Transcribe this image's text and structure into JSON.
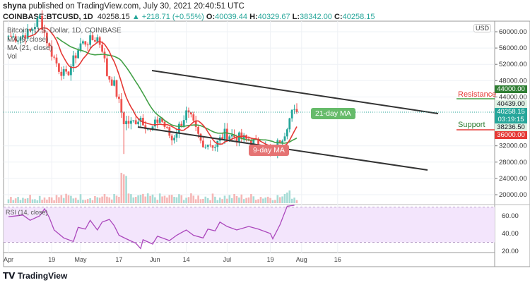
{
  "header": {
    "publisher": "shyna",
    "published_text": "published on TradingView.com, July 30, 2021 20:40:51 UTC",
    "symbol": "COINBASE:BTCUSD, 1D",
    "last": "40258.15",
    "change": "+218.71 (+0.55%)",
    "o_label": "O:",
    "open": "40039.44",
    "h_label": "H:",
    "high": "40329.67",
    "l_label": "L:",
    "low": "38342.00",
    "c_label": "C:",
    "close": "40258.15"
  },
  "legend": {
    "title": "Bitcoin / U.S. Dollar, 1D, COINBASE",
    "ma9": "MA (9, close)",
    "ma21": "MA (21, close)",
    "vol": "Vol",
    "rsi": "RSI (14, close)"
  },
  "annotations": {
    "resistance": "Resistance",
    "support": "Support",
    "ma21_label": "21-day MA",
    "ma9_label": "9-day MA"
  },
  "price_tags": {
    "resistance": "44000.00",
    "high_line": "40439.00",
    "last": "40258.15",
    "countdown": "03:19:15",
    "low_line": "38236.50",
    "support": "36000.00"
  },
  "currency": "USD",
  "brand": "TradingView",
  "colors": {
    "up": "#26a69a",
    "down": "#ef5350",
    "ma9": "#e53935",
    "ma21": "#43a047",
    "rsi": "#ab47bc",
    "rsi_band": "#f3e5fc"
  },
  "chart_data": [
    {
      "type": "candlestick",
      "title": "Bitcoin / U.S. Dollar, 1D, COINBASE",
      "y_ticks": [
        "60000.00",
        "56000.00",
        "52000.00",
        "48000.00",
        "44000.00",
        "32000.00",
        "28000.00",
        "24000.00",
        "20000.00"
      ],
      "ylim": [
        20000,
        62600
      ],
      "x_ticks": [
        "Apr",
        "19",
        "May",
        "17",
        "Jun",
        "14",
        "Jul",
        "19",
        "Aug",
        "16"
      ],
      "close_series": {
        "dates": [
          "2021-04-01",
          "2021-04-05",
          "2021-04-10",
          "2021-04-14",
          "2021-04-18",
          "2021-04-22",
          "2021-04-25",
          "2021-05-01",
          "2021-05-08",
          "2021-05-10",
          "2021-05-12",
          "2021-05-15",
          "2021-05-19",
          "2021-05-22",
          "2021-05-26",
          "2021-05-30",
          "2021-06-03",
          "2021-06-08",
          "2021-06-14",
          "2021-06-16",
          "2021-06-21",
          "2021-06-22",
          "2021-06-26",
          "2021-06-30",
          "2021-07-06",
          "2021-07-12",
          "2021-07-16",
          "2021-07-20",
          "2021-07-22",
          "2021-07-25",
          "2021-07-26",
          "2021-07-28",
          "2021-07-30"
        ],
        "values": [
          59000,
          58500,
          60000,
          63500,
          56000,
          51000,
          49000,
          57000,
          58500,
          56000,
          49500,
          47000,
          38000,
          37500,
          39000,
          35500,
          39000,
          33500,
          40000,
          38500,
          31500,
          33000,
          32000,
          35000,
          34000,
          33000,
          31800,
          29800,
          32500,
          35400,
          37300,
          40000,
          40258
        ]
      },
      "indicators": [
        "MA (9, close)",
        "MA (21, close)",
        "Vol"
      ]
    },
    {
      "type": "line",
      "title": "RSI (14, close)",
      "y_ticks": [
        "60.00",
        "40.00",
        "20.00"
      ],
      "bands": [
        30,
        70
      ],
      "dates": [
        "2021-04-01",
        "2021-04-07",
        "2021-04-10",
        "2021-04-14",
        "2021-04-16",
        "2021-04-18",
        "2021-04-20",
        "2021-04-24",
        "2021-04-28",
        "2021-04-30",
        "2021-05-03",
        "2021-05-05",
        "2021-05-08",
        "2021-05-10",
        "2021-05-13",
        "2021-05-15",
        "2021-05-17",
        "2021-05-20",
        "2021-05-24",
        "2021-05-26",
        "2021-05-27",
        "2021-05-31",
        "2021-06-02",
        "2021-06-07",
        "2021-06-10",
        "2021-06-14",
        "2021-06-17",
        "2021-06-21",
        "2021-06-23",
        "2021-06-26",
        "2021-06-28",
        "2021-07-01",
        "2021-07-05",
        "2021-07-10",
        "2021-07-14",
        "2021-07-19",
        "2021-07-20",
        "2021-07-23",
        "2021-07-26",
        "2021-07-29"
      ],
      "values": [
        59,
        61,
        55,
        60,
        68,
        58,
        44,
        35,
        31,
        47,
        45,
        55,
        44,
        53,
        56,
        49,
        38,
        34,
        29,
        23,
        33,
        28,
        37,
        32,
        38,
        44,
        38,
        35,
        45,
        43,
        53,
        48,
        44,
        48,
        45,
        40,
        34,
        50,
        71,
        72
      ]
    }
  ]
}
